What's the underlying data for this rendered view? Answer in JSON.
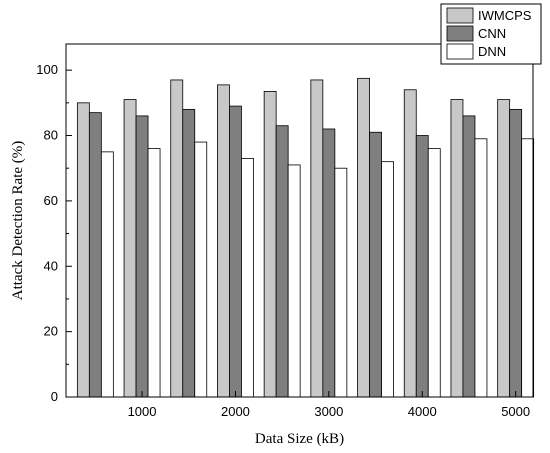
{
  "chart_data": {
    "type": "bar",
    "xlabel": "Data Size (kB)",
    "ylabel": "Attack Detection Rate (%)",
    "ylim": [
      0,
      108
    ],
    "y_ticks": [
      0,
      20,
      40,
      60,
      80,
      100
    ],
    "x_tick_labels": [
      "1000",
      "2000",
      "3000",
      "4000",
      "5000"
    ],
    "x_tick_groups": [
      1,
      3,
      5,
      7,
      9
    ],
    "group_count": 10,
    "grid": false,
    "legend_position": "top-right",
    "series": [
      {
        "name": "IWMCPS",
        "color": "#c8c8c8",
        "values": [
          90,
          91,
          97,
          95.5,
          93.5,
          97,
          97.5,
          94,
          91,
          91
        ]
      },
      {
        "name": "CNN",
        "color": "#7f7f7f",
        "values": [
          87,
          86,
          88,
          89,
          83,
          82,
          81,
          80,
          86,
          88
        ]
      },
      {
        "name": "DNN",
        "color": "#ffffff",
        "values": [
          75,
          76,
          78,
          73,
          71,
          70,
          72,
          76,
          79,
          79
        ]
      }
    ]
  }
}
